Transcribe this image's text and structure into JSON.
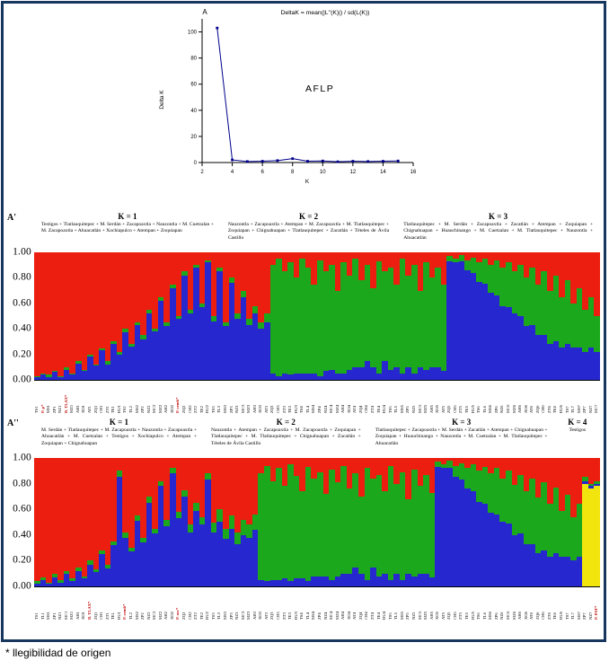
{
  "caption": "* llegibilidad de origen",
  "frame_color": "#17375E",
  "chart_data": [
    {
      "type": "line",
      "panel_label": "A",
      "title": "DeltaK = mean(|L''(K)|) / sd(L(K))",
      "xlabel": "K",
      "ylabel": "Delta K",
      "annotation": "AFLP",
      "x": [
        3,
        4,
        5,
        6,
        7,
        8,
        9,
        10,
        11,
        12,
        13,
        14,
        15
      ],
      "y": [
        103,
        2,
        0.8,
        1,
        1.5,
        3,
        1,
        1.2,
        0.6,
        1,
        0.8,
        1,
        1.2
      ],
      "xlim": [
        2,
        16
      ],
      "ylim": [
        0,
        110
      ],
      "x_ticks": [
        2,
        4,
        6,
        8,
        10,
        12,
        14,
        16
      ],
      "y_ticks": [
        0,
        20,
        40,
        60,
        80,
        100
      ],
      "line_color": "#00008B",
      "grid": false,
      "legend": false
    },
    {
      "type": "bar",
      "subtype": "structure-admixture-stacked",
      "panel_label": "A'",
      "y_ticks": [
        "1.00",
        "0.80",
        "0.60",
        "0.40",
        "0.20",
        "0.00"
      ],
      "cluster_colors": [
        "#EB1E10",
        "#1CA81C",
        "#2727CF"
      ],
      "groups": [
        {
          "label": "K = 1",
          "populations": "Testigos + Tlatlauquitepec + M. Serdán + Zacapoaxtla + Nauzontla + M. Cuetzalan + M. Zacapoaxtla + Ahuacatlán + Xochiapulco + Atempan + Zoquiapan"
        },
        {
          "label": "K = 2",
          "populations": "Nauzontla + Zacapoaxtla + Atempan + M. Zacapoaxtla + M. Tlatlauquitepec + Zoquiapan + Chignahuapan + Tlatlauquitepec + Zacatlán + Tételes de Ávila Castillo"
        },
        {
          "label": "K = 3",
          "populations": "Tlatlauquitepec + M. Serdán + Zacapoaxtla + Zacatlán + Atempan + Zoquiapan + Chignahuapan + Huauchinango + M. Cuetzalan + M. Tlatlauquitepec + Nauzontla + Ahuacatlán"
        }
      ],
      "bars": [
        [
          0.97,
          0.01,
          0.02
        ],
        [
          0.95,
          0.01,
          0.04
        ],
        [
          0.96,
          0.02,
          0.02
        ],
        [
          0.93,
          0.01,
          0.06
        ],
        [
          0.97,
          0.01,
          0.02
        ],
        [
          0.9,
          0.02,
          0.08
        ],
        [
          0.95,
          0.01,
          0.04
        ],
        [
          0.85,
          0.02,
          0.13
        ],
        [
          0.92,
          0.01,
          0.07
        ],
        [
          0.8,
          0.02,
          0.18
        ],
        [
          0.88,
          0.01,
          0.11
        ],
        [
          0.75,
          0.02,
          0.23
        ],
        [
          0.85,
          0.03,
          0.12
        ],
        [
          0.7,
          0.02,
          0.28
        ],
        [
          0.78,
          0.02,
          0.2
        ],
        [
          0.6,
          0.03,
          0.37
        ],
        [
          0.72,
          0.02,
          0.26
        ],
        [
          0.55,
          0.02,
          0.43
        ],
        [
          0.65,
          0.03,
          0.32
        ],
        [
          0.45,
          0.03,
          0.52
        ],
        [
          0.6,
          0.02,
          0.38
        ],
        [
          0.35,
          0.03,
          0.62
        ],
        [
          0.55,
          0.03,
          0.42
        ],
        [
          0.25,
          0.03,
          0.72
        ],
        [
          0.5,
          0.02,
          0.48
        ],
        [
          0.15,
          0.03,
          0.82
        ],
        [
          0.45,
          0.03,
          0.52
        ],
        [
          0.1,
          0.02,
          0.88
        ],
        [
          0.4,
          0.03,
          0.57
        ],
        [
          0.06,
          0.02,
          0.92
        ],
        [
          0.5,
          0.04,
          0.46
        ],
        [
          0.12,
          0.03,
          0.85
        ],
        [
          0.55,
          0.03,
          0.42
        ],
        [
          0.2,
          0.04,
          0.76
        ],
        [
          0.48,
          0.04,
          0.48
        ],
        [
          0.3,
          0.05,
          0.65
        ],
        [
          0.52,
          0.05,
          0.43
        ],
        [
          0.42,
          0.06,
          0.52
        ],
        [
          0.55,
          0.05,
          0.4
        ],
        [
          0.48,
          0.07,
          0.45
        ],
        [
          0.1,
          0.85,
          0.05
        ],
        [
          0.05,
          0.92,
          0.03
        ],
        [
          0.15,
          0.8,
          0.05
        ],
        [
          0.08,
          0.88,
          0.04
        ],
        [
          0.2,
          0.75,
          0.05
        ],
        [
          0.05,
          0.9,
          0.05
        ],
        [
          0.12,
          0.83,
          0.05
        ],
        [
          0.25,
          0.7,
          0.05
        ],
        [
          0.06,
          0.91,
          0.03
        ],
        [
          0.15,
          0.78,
          0.07
        ],
        [
          0.1,
          0.82,
          0.08
        ],
        [
          0.3,
          0.65,
          0.05
        ],
        [
          0.08,
          0.87,
          0.05
        ],
        [
          0.18,
          0.74,
          0.08
        ],
        [
          0.05,
          0.85,
          0.1
        ],
        [
          0.22,
          0.68,
          0.1
        ],
        [
          0.1,
          0.75,
          0.15
        ],
        [
          0.28,
          0.62,
          0.1
        ],
        [
          0.07,
          0.88,
          0.05
        ],
        [
          0.15,
          0.7,
          0.15
        ],
        [
          0.12,
          0.8,
          0.08
        ],
        [
          0.25,
          0.65,
          0.1
        ],
        [
          0.05,
          0.9,
          0.05
        ],
        [
          0.18,
          0.72,
          0.1
        ],
        [
          0.1,
          0.85,
          0.05
        ],
        [
          0.3,
          0.6,
          0.1
        ],
        [
          0.08,
          0.84,
          0.08
        ],
        [
          0.2,
          0.7,
          0.1
        ],
        [
          0.12,
          0.78,
          0.1
        ],
        [
          0.25,
          0.68,
          0.07
        ],
        [
          0.03,
          0.04,
          0.93
        ],
        [
          0.05,
          0.03,
          0.92
        ],
        [
          0.02,
          0.05,
          0.93
        ],
        [
          0.06,
          0.08,
          0.86
        ],
        [
          0.04,
          0.12,
          0.84
        ],
        [
          0.08,
          0.15,
          0.77
        ],
        [
          0.05,
          0.2,
          0.75
        ],
        [
          0.1,
          0.22,
          0.68
        ],
        [
          0.06,
          0.28,
          0.66
        ],
        [
          0.12,
          0.3,
          0.58
        ],
        [
          0.08,
          0.35,
          0.57
        ],
        [
          0.15,
          0.33,
          0.52
        ],
        [
          0.1,
          0.4,
          0.5
        ],
        [
          0.2,
          0.38,
          0.42
        ],
        [
          0.12,
          0.45,
          0.43
        ],
        [
          0.25,
          0.4,
          0.35
        ],
        [
          0.15,
          0.5,
          0.35
        ],
        [
          0.3,
          0.42,
          0.28
        ],
        [
          0.18,
          0.52,
          0.3
        ],
        [
          0.35,
          0.4,
          0.25
        ],
        [
          0.22,
          0.5,
          0.28
        ],
        [
          0.4,
          0.35,
          0.25
        ],
        [
          0.28,
          0.47,
          0.25
        ],
        [
          0.45,
          0.33,
          0.22
        ],
        [
          0.35,
          0.4,
          0.25
        ],
        [
          0.5,
          0.28,
          0.22
        ]
      ],
      "tick_labels": [
        "TS1",
        "P. p*",
        "MS1",
        "ZP1",
        "NZ1",
        "B. TLAX*",
        "MZ1",
        "AH1",
        "XO1",
        "AT1",
        "ZQ1",
        "CH1",
        "ZT1",
        "TE1",
        "HU1",
        "TS2",
        "TL2",
        "MS2",
        "ZP2",
        "NZ2",
        "MC2",
        "MZ2",
        "AH2",
        "XO2",
        "P. cemb*",
        "ZQ2",
        "CH2",
        "ZT2",
        "TE2",
        "HU2",
        "TS3",
        "TL3",
        "MS3",
        "ZP3",
        "NZ3",
        "MC3",
        "MZ3",
        "AH3",
        "XO3",
        "AT3",
        "ZQ3",
        "CH3",
        "ZT3",
        "TE3",
        "HU3",
        "TS4",
        "TL4",
        "MS4",
        "ZP4",
        "NZ4",
        "MC4",
        "MZ4",
        "AH4",
        "XO4",
        "AT4",
        "ZQ4",
        "CH4",
        "ZT4",
        "TE4",
        "HU4",
        "TS5",
        "TL5",
        "MS5",
        "ZP5",
        "NZ5",
        "MC5",
        "MZ5",
        "AH5",
        "XO5",
        "AT5",
        "ZQ5",
        "CH5",
        "ZT5",
        "TE5",
        "HU5",
        "TS6",
        "TL6",
        "MS6",
        "ZP6",
        "NZ6",
        "MC6",
        "MZ6",
        "AH6",
        "XO6",
        "AT6",
        "ZQ6",
        "CH6",
        "ZT6",
        "TE6",
        "HU6",
        "TS7",
        "TL7",
        "MS7",
        "ZP7",
        "NZ7",
        "MC7"
      ],
      "red_ticks": [
        1,
        5,
        24
      ]
    },
    {
      "type": "bar",
      "subtype": "structure-admixture-stacked",
      "panel_label": "A''",
      "y_ticks": [
        "1.00",
        "0.80",
        "0.60",
        "0.40",
        "0.20",
        "0.00"
      ],
      "cluster_colors": [
        "#EB1E10",
        "#1CA81C",
        "#2727CF",
        "#F2E50E"
      ],
      "groups": [
        {
          "label": "K = 1",
          "populations": "M. Serdán + Tlatlauquitepec + M. Zacapoaxtla + Nauzontla + Zacapoaxtla + Ahuacatlán + M. Cuetzalan + Testigos + Xochiapulco + Atempan + Zoquiapan + Chignahuapan"
        },
        {
          "label": "K = 2",
          "populations": "Nauzontla + Atempan + Zacapoaxtla + M. Zacapoaxtla + Zoquiapan + Tlatlauquitepec + M. Tlatlauquitepec + Chignahuapan + Zacatlán + Tételes de Ávila Castillo"
        },
        {
          "label": "K = 3",
          "populations": "Tlatlauquitepec + Zacapoaxtla + M. Serdán + Zacatlán + Atempan + Chignahuapan + Zoquiapan + Huauchinango + Nauzontla + M. Cuetzalan + M. Tlatlauquitepec + Ahuacatlán"
        },
        {
          "label": "K = 4",
          "populations": "Testigos"
        }
      ],
      "bars": [
        [
          0.96,
          0.02,
          0.02
        ],
        [
          0.93,
          0.02,
          0.05
        ],
        [
          0.97,
          0.01,
          0.02
        ],
        [
          0.9,
          0.03,
          0.07
        ],
        [
          0.95,
          0.02,
          0.03
        ],
        [
          0.88,
          0.02,
          0.1
        ],
        [
          0.94,
          0.02,
          0.04
        ],
        [
          0.85,
          0.03,
          0.12
        ],
        [
          0.92,
          0.02,
          0.06
        ],
        [
          0.8,
          0.03,
          0.17
        ],
        [
          0.87,
          0.02,
          0.11
        ],
        [
          0.72,
          0.03,
          0.25
        ],
        [
          0.83,
          0.03,
          0.14
        ],
        [
          0.65,
          0.03,
          0.32
        ],
        [
          0.1,
          0.05,
          0.85
        ],
        [
          0.58,
          0.04,
          0.38
        ],
        [
          0.7,
          0.03,
          0.27
        ],
        [
          0.45,
          0.04,
          0.51
        ],
        [
          0.62,
          0.04,
          0.34
        ],
        [
          0.3,
          0.05,
          0.65
        ],
        [
          0.55,
          0.04,
          0.41
        ],
        [
          0.18,
          0.04,
          0.78
        ],
        [
          0.48,
          0.05,
          0.47
        ],
        [
          0.08,
          0.04,
          0.88
        ],
        [
          0.42,
          0.05,
          0.53
        ],
        [
          0.25,
          0.05,
          0.7
        ],
        [
          0.52,
          0.06,
          0.42
        ],
        [
          0.35,
          0.06,
          0.59
        ],
        [
          0.46,
          0.06,
          0.48
        ],
        [
          0.12,
          0.05,
          0.83
        ],
        [
          0.5,
          0.08,
          0.42
        ],
        [
          0.4,
          0.1,
          0.5
        ],
        [
          0.55,
          0.08,
          0.37
        ],
        [
          0.45,
          0.1,
          0.45
        ],
        [
          0.58,
          0.09,
          0.33
        ],
        [
          0.48,
          0.12,
          0.4
        ],
        [
          0.52,
          0.1,
          0.38
        ],
        [
          0.44,
          0.12,
          0.44
        ],
        [
          0.12,
          0.83,
          0.05
        ],
        [
          0.06,
          0.9,
          0.04
        ],
        [
          0.18,
          0.77,
          0.05
        ],
        [
          0.08,
          0.87,
          0.05
        ],
        [
          0.22,
          0.72,
          0.06
        ],
        [
          0.05,
          0.91,
          0.04
        ],
        [
          0.14,
          0.8,
          0.06
        ],
        [
          0.26,
          0.68,
          0.06
        ],
        [
          0.07,
          0.89,
          0.04
        ],
        [
          0.16,
          0.76,
          0.08
        ],
        [
          0.11,
          0.81,
          0.08
        ],
        [
          0.28,
          0.64,
          0.08
        ],
        [
          0.09,
          0.86,
          0.05
        ],
        [
          0.19,
          0.73,
          0.08
        ],
        [
          0.06,
          0.84,
          0.1
        ],
        [
          0.24,
          0.66,
          0.1
        ],
        [
          0.12,
          0.73,
          0.15
        ],
        [
          0.3,
          0.6,
          0.1
        ],
        [
          0.08,
          0.87,
          0.05
        ],
        [
          0.16,
          0.69,
          0.15
        ],
        [
          0.13,
          0.79,
          0.08
        ],
        [
          0.26,
          0.64,
          0.1
        ],
        [
          0.06,
          0.89,
          0.05
        ],
        [
          0.2,
          0.7,
          0.1
        ],
        [
          0.11,
          0.84,
          0.05
        ],
        [
          0.32,
          0.58,
          0.1
        ],
        [
          0.09,
          0.83,
          0.08
        ],
        [
          0.22,
          0.68,
          0.1
        ],
        [
          0.13,
          0.77,
          0.1
        ],
        [
          0.27,
          0.66,
          0.07
        ],
        [
          0.03,
          0.04,
          0.93
        ],
        [
          0.05,
          0.03,
          0.92
        ],
        [
          0.02,
          0.06,
          0.92
        ],
        [
          0.06,
          0.09,
          0.85
        ],
        [
          0.04,
          0.13,
          0.83
        ],
        [
          0.08,
          0.16,
          0.76
        ],
        [
          0.05,
          0.21,
          0.74
        ],
        [
          0.1,
          0.24,
          0.66
        ],
        [
          0.07,
          0.29,
          0.64
        ],
        [
          0.12,
          0.31,
          0.57
        ],
        [
          0.08,
          0.36,
          0.56
        ],
        [
          0.16,
          0.34,
          0.5
        ],
        [
          0.1,
          0.41,
          0.49
        ],
        [
          0.21,
          0.39,
          0.4
        ],
        [
          0.13,
          0.46,
          0.41
        ],
        [
          0.26,
          0.41,
          0.33
        ],
        [
          0.16,
          0.51,
          0.33
        ],
        [
          0.31,
          0.43,
          0.26
        ],
        [
          0.19,
          0.53,
          0.28
        ],
        [
          0.36,
          0.41,
          0.23
        ],
        [
          0.23,
          0.51,
          0.26
        ],
        [
          0.41,
          0.36,
          0.23
        ],
        [
          0.29,
          0.48,
          0.23
        ],
        [
          0.46,
          0.34,
          0.2
        ],
        [
          0.36,
          0.41,
          0.23
        ],
        [
          0.15,
          0.03,
          0.02,
          0.8
        ],
        [
          0.2,
          0.02,
          0.02,
          0.76
        ],
        [
          0.18,
          0.02,
          0.02,
          0.78
        ]
      ],
      "tick_labels": [
        "TS1",
        "TL1",
        "MS1",
        "ZP1",
        "NZ1",
        "MC1",
        "MZ1",
        "AH1",
        "XO1",
        "B. TLAX*",
        "ZQ1",
        "CH1",
        "ZT1",
        "TE1",
        "HU1",
        "P. cemb*",
        "TL2",
        "MS2",
        "ZP2",
        "NZ2",
        "MC2",
        "MZ2",
        "AH2",
        "XO2",
        "P. occ*",
        "ZQ2",
        "CH2",
        "ZT2",
        "TE2",
        "HU2",
        "TS3",
        "TL3",
        "MS3",
        "ZP3",
        "NZ3",
        "MC3",
        "MZ3",
        "AH3",
        "XO3",
        "AT3",
        "ZQ3",
        "CH3",
        "ZT3",
        "TE3",
        "HU3",
        "TS4",
        "TL4",
        "MS4",
        "ZP4",
        "NZ4",
        "MC4",
        "MZ4",
        "AH4",
        "XO4",
        "AT4",
        "ZQ4",
        "CH4",
        "ZT4",
        "TE4",
        "HU4",
        "TS5",
        "TL5",
        "MS5",
        "ZP5",
        "NZ5",
        "MC5",
        "MZ5",
        "AH5",
        "XO5",
        "AT5",
        "ZQ5",
        "CH5",
        "ZT5",
        "TE5",
        "HU5",
        "TS6",
        "TL6",
        "MS6",
        "ZP6",
        "NZ6",
        "MC6",
        "MZ6",
        "AH6",
        "XO6",
        "AT6",
        "ZQ6",
        "CH6",
        "ZT6",
        "TE6",
        "HU6",
        "TS7",
        "TL7",
        "MS7",
        "ZP7",
        "NZ7",
        "P. PAT*"
      ],
      "red_ticks": [
        9,
        15,
        24,
        95
      ]
    }
  ]
}
